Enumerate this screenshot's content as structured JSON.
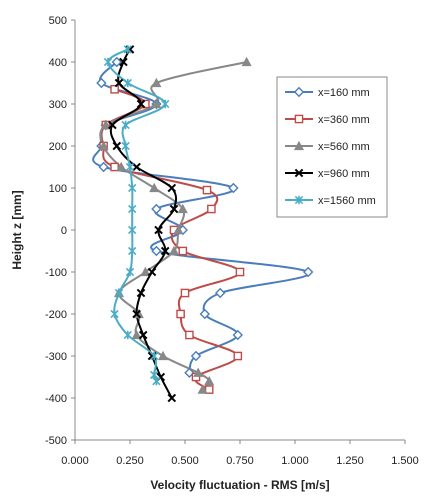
{
  "chart_data": {
    "type": "scatter",
    "xlabel": "Velocity fluctuation - RMS [m/s]",
    "ylabel": "Height z [mm]",
    "xlim": [
      0,
      1.5
    ],
    "ylim": [
      -500,
      500
    ],
    "x_ticks": [
      "0.000",
      "0.250",
      "0.500",
      "0.750",
      "1.000",
      "1.250",
      "1.500"
    ],
    "y_ticks": [
      "500",
      "400",
      "300",
      "200",
      "100",
      "0",
      "-100",
      "-200",
      "-300",
      "-400",
      "-500"
    ],
    "grid": false,
    "legend_position": "right",
    "series": [
      {
        "name": "x=160 mm",
        "color": "#4a7ebb",
        "marker": "diamond",
        "points": [
          [
            0.19,
            400
          ],
          [
            0.12,
            350
          ],
          [
            0.37,
            300
          ],
          [
            0.14,
            250
          ],
          [
            0.12,
            200
          ],
          [
            0.13,
            150
          ],
          [
            0.72,
            100
          ],
          [
            0.37,
            50
          ],
          [
            0.49,
            0
          ],
          [
            0.37,
            -50
          ],
          [
            1.06,
            -100
          ],
          [
            0.66,
            -150
          ],
          [
            0.59,
            -200
          ],
          [
            0.74,
            -250
          ],
          [
            0.55,
            -300
          ],
          [
            0.52,
            -340
          ]
        ]
      },
      {
        "name": "x=360 mm",
        "color": "#be4b48",
        "marker": "square",
        "points": [
          [
            0.18,
            335
          ],
          [
            0.32,
            300
          ],
          [
            0.14,
            250
          ],
          [
            0.13,
            200
          ],
          [
            0.18,
            150
          ],
          [
            0.6,
            95
          ],
          [
            0.62,
            50
          ],
          [
            0.45,
            0
          ],
          [
            0.49,
            -50
          ],
          [
            0.75,
            -100
          ],
          [
            0.5,
            -150
          ],
          [
            0.48,
            -200
          ],
          [
            0.52,
            -250
          ],
          [
            0.74,
            -300
          ],
          [
            0.55,
            -350
          ],
          [
            0.61,
            -380
          ]
        ]
      },
      {
        "name": "x=560 mm",
        "color": "#888888",
        "marker": "triangle",
        "points": [
          [
            0.78,
            400
          ],
          [
            0.37,
            350
          ],
          [
            0.37,
            300
          ],
          [
            0.14,
            250
          ],
          [
            0.13,
            200
          ],
          [
            0.21,
            150
          ],
          [
            0.36,
            100
          ],
          [
            0.49,
            50
          ],
          [
            0.47,
            0
          ],
          [
            0.45,
            -50
          ],
          [
            0.32,
            -100
          ],
          [
            0.2,
            -150
          ],
          [
            0.29,
            -200
          ],
          [
            0.28,
            -250
          ],
          [
            0.4,
            -300
          ],
          [
            0.56,
            -340
          ],
          [
            0.61,
            -360
          ],
          [
            0.58,
            -380
          ]
        ]
      },
      {
        "name": "x=960 mm",
        "color": "#000000",
        "marker": "x",
        "points": [
          [
            0.25,
            430
          ],
          [
            0.22,
            400
          ],
          [
            0.2,
            350
          ],
          [
            0.3,
            300
          ],
          [
            0.17,
            250
          ],
          [
            0.19,
            200
          ],
          [
            0.28,
            150
          ],
          [
            0.44,
            100
          ],
          [
            0.45,
            50
          ],
          [
            0.38,
            0
          ],
          [
            0.41,
            -50
          ],
          [
            0.35,
            -100
          ],
          [
            0.3,
            -150
          ],
          [
            0.28,
            -200
          ],
          [
            0.31,
            -250
          ],
          [
            0.35,
            -300
          ],
          [
            0.39,
            -350
          ],
          [
            0.44,
            -400
          ]
        ]
      },
      {
        "name": "x=1560 mm",
        "color": "#4bacc6",
        "marker": "star",
        "points": [
          [
            0.24,
            430
          ],
          [
            0.15,
            400
          ],
          [
            0.24,
            350
          ],
          [
            0.41,
            300
          ],
          [
            0.23,
            250
          ],
          [
            0.23,
            200
          ],
          [
            0.25,
            150
          ],
          [
            0.26,
            100
          ],
          [
            0.26,
            50
          ],
          [
            0.26,
            0
          ],
          [
            0.26,
            -50
          ],
          [
            0.25,
            -100
          ],
          [
            0.2,
            -150
          ],
          [
            0.18,
            -200
          ],
          [
            0.24,
            -250
          ],
          [
            0.36,
            -300
          ],
          [
            0.36,
            -345
          ],
          [
            0.37,
            -360
          ]
        ]
      }
    ]
  }
}
